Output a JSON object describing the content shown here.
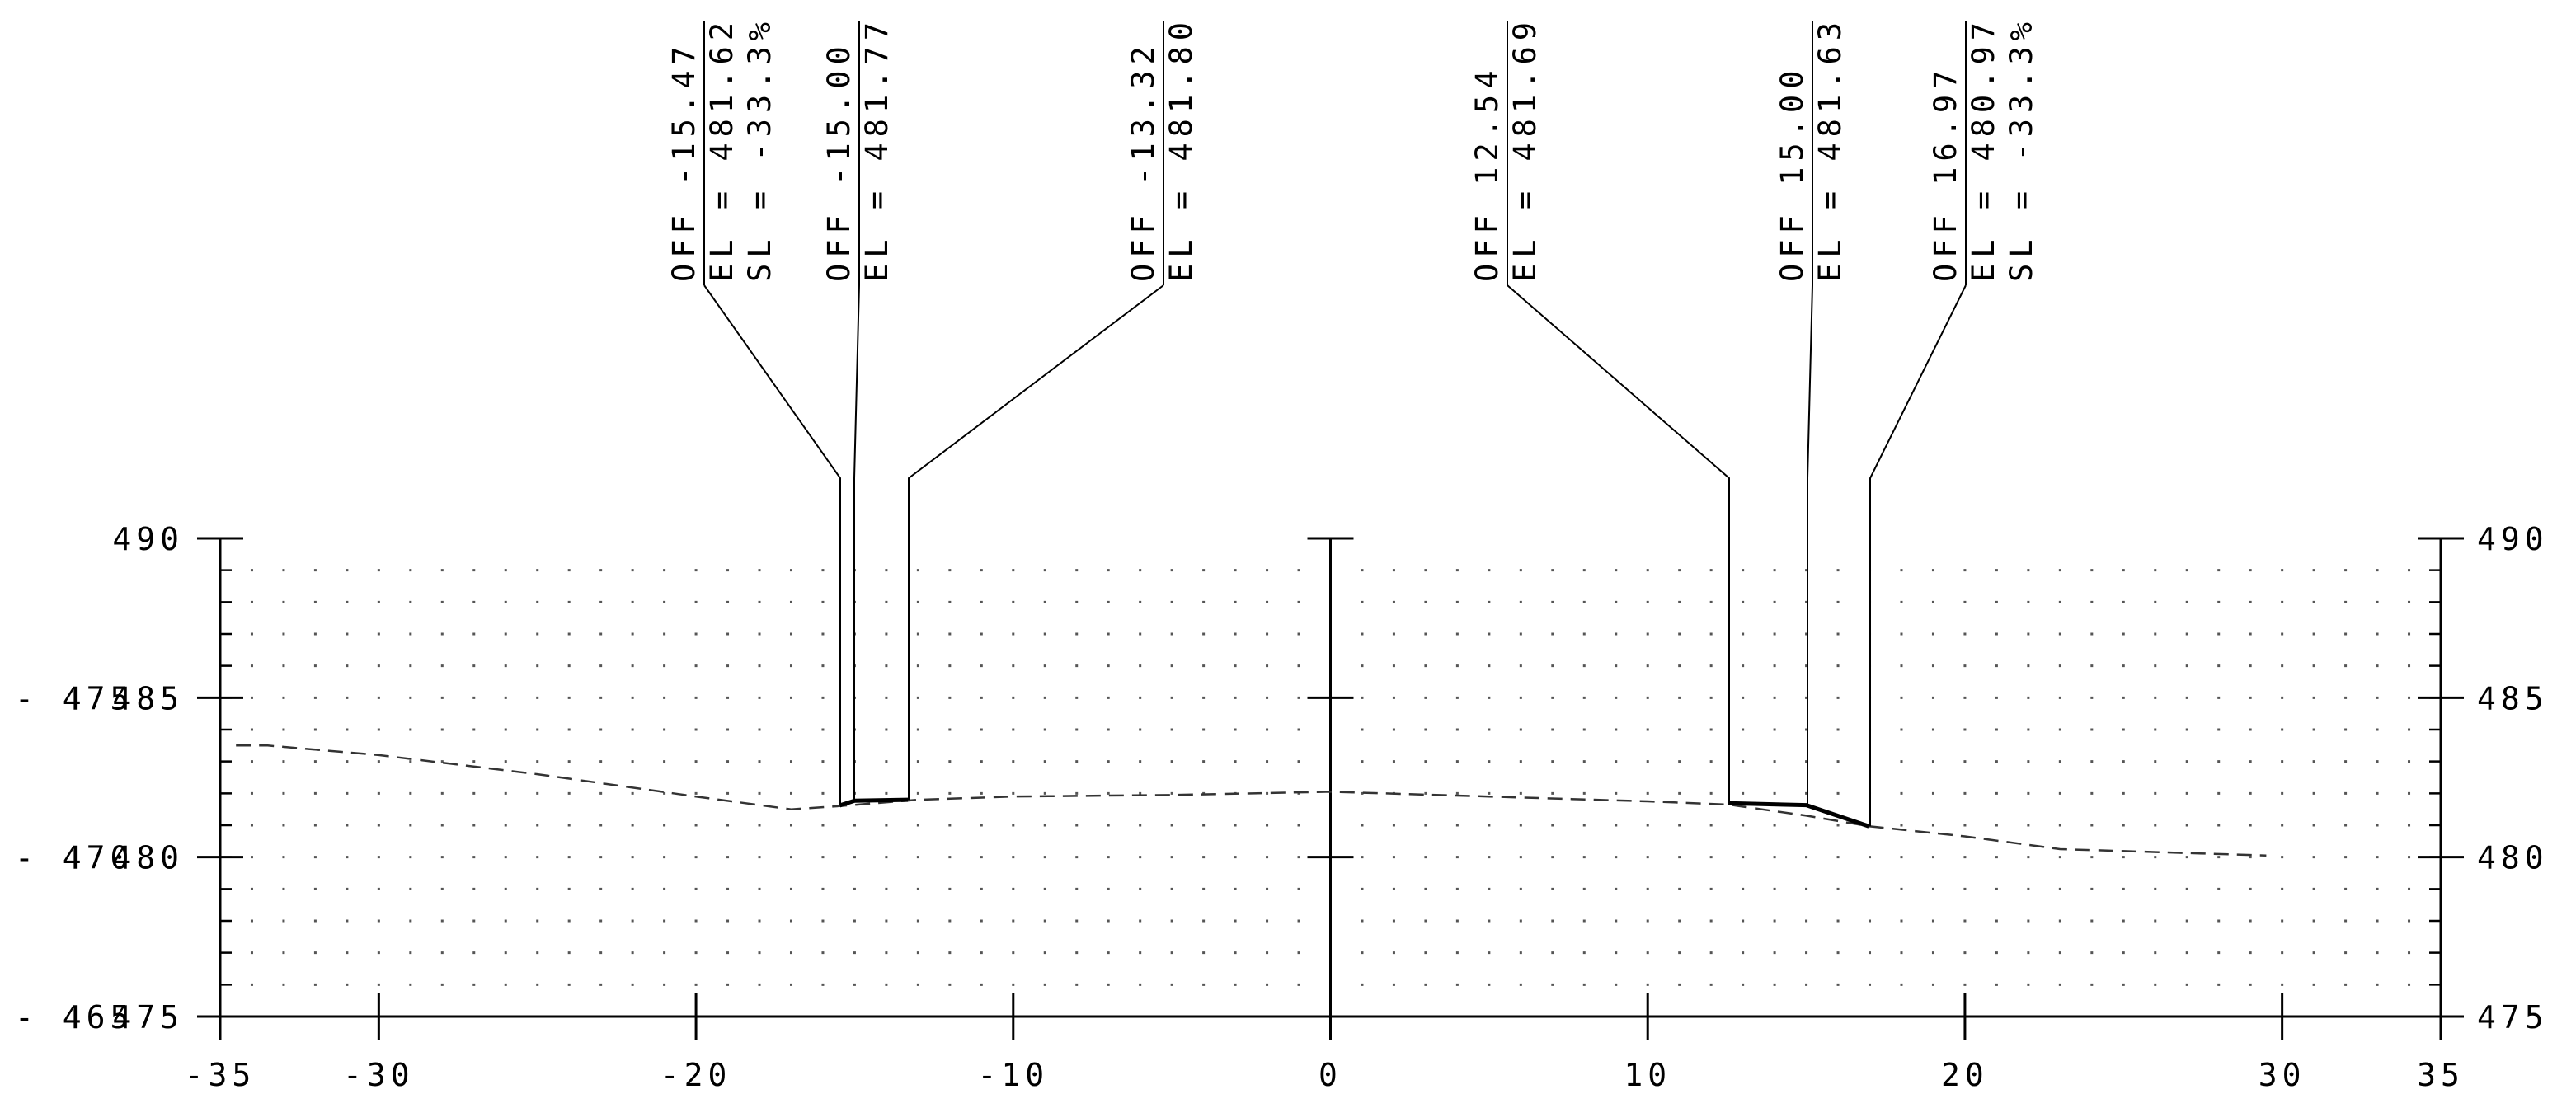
{
  "section": {
    "offset_axis": {
      "min": -35,
      "max": 35,
      "ticks": [
        -35,
        -30,
        -20,
        -10,
        0,
        10,
        20,
        30,
        35
      ],
      "tick_labels": [
        "-35",
        "-30",
        "-20",
        "-10",
        "0",
        "10",
        "20",
        "30",
        "35"
      ]
    },
    "elevation_axis": {
      "min": 475,
      "max": 490,
      "major_ticks": [
        475,
        480,
        485,
        490
      ],
      "left_labels": [
        "475",
        "480",
        "485",
        "490"
      ],
      "right_labels": [
        "475",
        "480",
        "485",
        "490"
      ],
      "outer_labels": [
        "465",
        "470",
        "475"
      ]
    },
    "existing_ground": {
      "style": "dashed",
      "points": [
        [
          -34.5,
          483.5
        ],
        [
          -33.5,
          483.5
        ],
        [
          -30.0,
          483.2
        ],
        [
          -25.0,
          482.6
        ],
        [
          -20.0,
          481.9
        ],
        [
          -17.0,
          481.5
        ],
        [
          -15.5,
          481.6
        ],
        [
          -13.0,
          481.8
        ],
        [
          -10.0,
          481.9
        ],
        [
          -5.0,
          481.95
        ],
        [
          0.0,
          482.05
        ],
        [
          5.0,
          481.9
        ],
        [
          10.0,
          481.75
        ],
        [
          12.54,
          481.65
        ],
        [
          15.0,
          481.3
        ],
        [
          16.97,
          480.97
        ],
        [
          20.0,
          480.65
        ],
        [
          23.0,
          480.25
        ],
        [
          29.5,
          480.05
        ]
      ]
    },
    "proposed_segments": [
      [
        [
          -15.47,
          481.62
        ],
        [
          -15.0,
          481.77
        ],
        [
          -13.32,
          481.8
        ]
      ],
      [
        [
          12.54,
          481.69
        ],
        [
          15.0,
          481.63
        ],
        [
          16.97,
          480.97
        ]
      ]
    ],
    "callouts": [
      {
        "offset": -15.47,
        "lines": [
          "OFF -15.47",
          "EL = 481.62",
          "SL = -33.3%"
        ]
      },
      {
        "offset": -15.0,
        "lines": [
          "OFF -15.00",
          "EL = 481.77"
        ]
      },
      {
        "offset": -13.32,
        "lines": [
          "OFF -13.32",
          "EL = 481.80"
        ]
      },
      {
        "offset": 12.54,
        "lines": [
          "OFF 12.54",
          "EL = 481.69"
        ]
      },
      {
        "offset": 15.0,
        "lines": [
          "OFF 15.00",
          "EL = 481.63"
        ]
      },
      {
        "offset": 16.97,
        "lines": [
          "OFF 16.97",
          "EL = 480.97",
          "SL = -33.3%"
        ]
      }
    ]
  }
}
